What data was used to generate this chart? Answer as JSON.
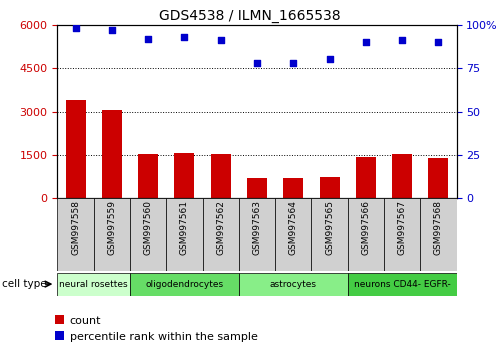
{
  "title": "GDS4538 / ILMN_1665538",
  "samples": [
    "GSM997558",
    "GSM997559",
    "GSM997560",
    "GSM997561",
    "GSM997562",
    "GSM997563",
    "GSM997564",
    "GSM997565",
    "GSM997566",
    "GSM997567",
    "GSM997568"
  ],
  "bar_values": [
    3400,
    3050,
    1530,
    1560,
    1520,
    700,
    700,
    730,
    1420,
    1530,
    1380
  ],
  "scatter_values": [
    98,
    97,
    92,
    93,
    91,
    78,
    78,
    80,
    90,
    91,
    90
  ],
  "left_ylim": [
    0,
    6000
  ],
  "right_ylim": [
    0,
    100
  ],
  "left_yticks": [
    0,
    1500,
    3000,
    4500,
    6000
  ],
  "right_yticks": [
    0,
    25,
    50,
    75,
    100
  ],
  "bar_color": "#cc0000",
  "scatter_color": "#0000cc",
  "cell_types": [
    {
      "label": "neural rosettes",
      "start": 0,
      "end": 1,
      "color": "#ccffcc"
    },
    {
      "label": "oligodendrocytes",
      "start": 2,
      "end": 4,
      "color": "#66dd66"
    },
    {
      "label": "astrocytes",
      "start": 5,
      "end": 7,
      "color": "#88ee88"
    },
    {
      "label": "neurons CD44- EGFR-",
      "start": 8,
      "end": 10,
      "color": "#44cc44"
    }
  ],
  "cell_type_label": "cell type",
  "legend_count_label": "count",
  "legend_percentile_label": "percentile rank within the sample",
  "xtick_bg": "#d0d0d0",
  "plot_bg": "#ffffff"
}
